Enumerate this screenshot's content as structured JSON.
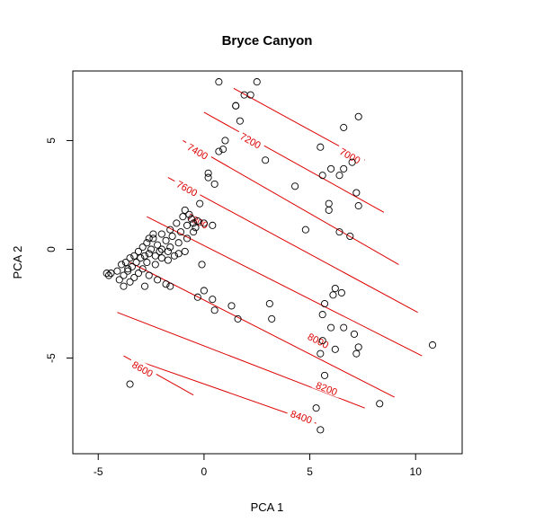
{
  "chart_data": {
    "type": "scatter",
    "title": "Bryce Canyon",
    "xlabel": "PCA 1",
    "ylabel": "PCA 2",
    "xlim": [
      -6.2,
      12.2
    ],
    "ylim": [
      -9.4,
      8.2
    ],
    "xticks": [
      -5,
      0,
      5,
      10
    ],
    "yticks": [
      -5,
      0,
      5
    ],
    "point_color": "#000000",
    "contour_color": "#dd0000",
    "points": [
      [
        0.7,
        7.7
      ],
      [
        2.5,
        7.7
      ],
      [
        1.9,
        7.1
      ],
      [
        2.2,
        7.1
      ],
      [
        1.5,
        6.6
      ],
      [
        1.5,
        6.6
      ],
      [
        7.3,
        6.1
      ],
      [
        1.7,
        5.9
      ],
      [
        6.6,
        5.6
      ],
      [
        1.0,
        5.0
      ],
      [
        0.9,
        4.6
      ],
      [
        0.7,
        4.5
      ],
      [
        5.5,
        4.7
      ],
      [
        2.9,
        4.1
      ],
      [
        7.0,
        4.0
      ],
      [
        6.0,
        3.7
      ],
      [
        6.6,
        3.7
      ],
      [
        5.6,
        3.4
      ],
      [
        6.4,
        3.4
      ],
      [
        0.2,
        3.5
      ],
      [
        0.2,
        3.3
      ],
      [
        0.5,
        3.0
      ],
      [
        4.3,
        2.9
      ],
      [
        7.2,
        2.6
      ],
      [
        -0.2,
        2.1
      ],
      [
        5.9,
        2.1
      ],
      [
        7.3,
        2.0
      ],
      [
        5.9,
        1.8
      ],
      [
        -0.5,
        1.2
      ],
      [
        0.0,
        1.2
      ],
      [
        0.4,
        1.1
      ],
      [
        4.8,
        0.9
      ],
      [
        6.4,
        0.8
      ],
      [
        6.9,
        0.6
      ],
      [
        -0.9,
        1.8
      ],
      [
        -0.7,
        1.6
      ],
      [
        -1.0,
        1.5
      ],
      [
        -0.6,
        1.4
      ],
      [
        -0.3,
        1.3
      ],
      [
        -1.3,
        1.2
      ],
      [
        -0.8,
        1.1
      ],
      [
        -0.4,
        1.0
      ],
      [
        -1.6,
        0.9
      ],
      [
        -1.1,
        0.8
      ],
      [
        -0.5,
        0.8
      ],
      [
        -2.0,
        0.7
      ],
      [
        -1.5,
        0.6
      ],
      [
        -0.8,
        0.5
      ],
      [
        -2.4,
        0.5
      ],
      [
        -1.8,
        0.4
      ],
      [
        -1.2,
        0.3
      ],
      [
        -2.7,
        0.3
      ],
      [
        -2.2,
        0.2
      ],
      [
        -1.6,
        0.1
      ],
      [
        -2.9,
        0.1
      ],
      [
        -2.5,
        0.0
      ],
      [
        -2.0,
        0.0
      ],
      [
        -3.1,
        -0.1
      ],
      [
        -2.6,
        -0.2
      ],
      [
        -3.3,
        -0.3
      ],
      [
        -2.8,
        -0.3
      ],
      [
        -2.3,
        -0.3
      ],
      [
        -3.5,
        -0.4
      ],
      [
        -3.0,
        -0.4
      ],
      [
        -1.7,
        -0.5
      ],
      [
        -1.2,
        -0.2
      ],
      [
        -0.9,
        -0.1
      ],
      [
        -3.7,
        -0.6
      ],
      [
        -3.2,
        -0.6
      ],
      [
        -2.7,
        -0.6
      ],
      [
        -2.3,
        -0.7
      ],
      [
        -3.9,
        -0.7
      ],
      [
        -3.4,
        -0.8
      ],
      [
        -2.9,
        -0.9
      ],
      [
        -4.1,
        -1.0
      ],
      [
        -3.6,
        -1.0
      ],
      [
        -3.1,
        -1.1
      ],
      [
        -4.4,
        -1.1
      ],
      [
        -3.8,
        -1.2
      ],
      [
        -3.3,
        -1.3
      ],
      [
        -4.5,
        -1.2
      ],
      [
        -2.6,
        -1.2
      ],
      [
        -4.0,
        -1.4
      ],
      [
        -3.5,
        -1.5
      ],
      [
        -2.2,
        -1.4
      ],
      [
        -3.8,
        -1.7
      ],
      [
        -1.8,
        -1.6
      ],
      [
        -1.6,
        -1.7
      ],
      [
        -2.8,
        -1.7
      ],
      [
        -0.1,
        -0.7
      ],
      [
        0.0,
        -1.9
      ],
      [
        -0.3,
        -2.2
      ],
      [
        0.4,
        -2.3
      ],
      [
        1.3,
        -2.6
      ],
      [
        0.5,
        -2.8
      ],
      [
        3.1,
        -2.5
      ],
      [
        1.6,
        -3.2
      ],
      [
        3.2,
        -3.2
      ],
      [
        6.2,
        -1.8
      ],
      [
        6.1,
        -2.1
      ],
      [
        6.5,
        -2.0
      ],
      [
        5.7,
        -2.5
      ],
      [
        5.6,
        -3.0
      ],
      [
        6.0,
        -3.6
      ],
      [
        6.6,
        -3.6
      ],
      [
        7.1,
        -3.9
      ],
      [
        5.6,
        -4.2
      ],
      [
        7.3,
        -4.5
      ],
      [
        6.2,
        -4.6
      ],
      [
        5.5,
        -4.8
      ],
      [
        7.2,
        -4.8
      ],
      [
        10.8,
        -4.4
      ],
      [
        5.7,
        -5.8
      ],
      [
        -3.5,
        -6.2
      ],
      [
        5.3,
        -7.3
      ],
      [
        8.3,
        -7.1
      ],
      [
        5.5,
        -8.3
      ],
      [
        -4.6,
        -1.1
      ],
      [
        -2.4,
        0.7
      ],
      [
        -2.1,
        -0.1
      ],
      [
        -1.4,
        -0.3
      ],
      [
        -3.6,
        -0.9
      ],
      [
        -2.0,
        -0.4
      ],
      [
        -2.6,
        0.5
      ],
      [
        -1.7,
        -0.1
      ]
    ],
    "contours": [
      {
        "level": "7000",
        "from": [
          1.4,
          7.4
        ],
        "to": [
          7.6,
          4.1
        ],
        "label_at": [
          6.9,
          4.3
        ]
      },
      {
        "level": "7200",
        "from": [
          0.0,
          6.3
        ],
        "to": [
          8.5,
          1.7
        ],
        "label_at": [
          2.2,
          5.0
        ]
      },
      {
        "level": "7400",
        "from": [
          -1.0,
          5.0
        ],
        "to": [
          9.2,
          -0.7
        ],
        "label_at": [
          -0.3,
          4.5
        ]
      },
      {
        "level": "7600",
        "from": [
          -1.7,
          3.3
        ],
        "to": [
          10.1,
          -2.9
        ],
        "label_at": [
          -0.8,
          2.8
        ]
      },
      {
        "level": "7800",
        "from": [
          -2.7,
          1.5
        ],
        "to": [
          10.3,
          -4.9
        ],
        "label_at": [
          -0.3,
          1.3
        ]
      },
      {
        "level": "8000",
        "from": [
          -3.5,
          -0.6
        ],
        "to": [
          9.0,
          -6.8
        ],
        "label_at": [
          5.4,
          -4.2
        ]
      },
      {
        "level": "8200",
        "from": [
          -4.1,
          -2.9
        ],
        "to": [
          7.6,
          -7.3
        ],
        "label_at": [
          5.8,
          -6.4
        ]
      },
      {
        "level": "8400",
        "from": [
          -3.2,
          -5.1
        ],
        "to": [
          5.3,
          -8.0
        ],
        "label_at": [
          4.6,
          -7.7
        ]
      },
      {
        "level": "8600",
        "from": [
          -3.8,
          -4.9
        ],
        "to": [
          -0.5,
          -6.7
        ],
        "label_at": [
          -2.9,
          -5.5
        ]
      }
    ]
  }
}
